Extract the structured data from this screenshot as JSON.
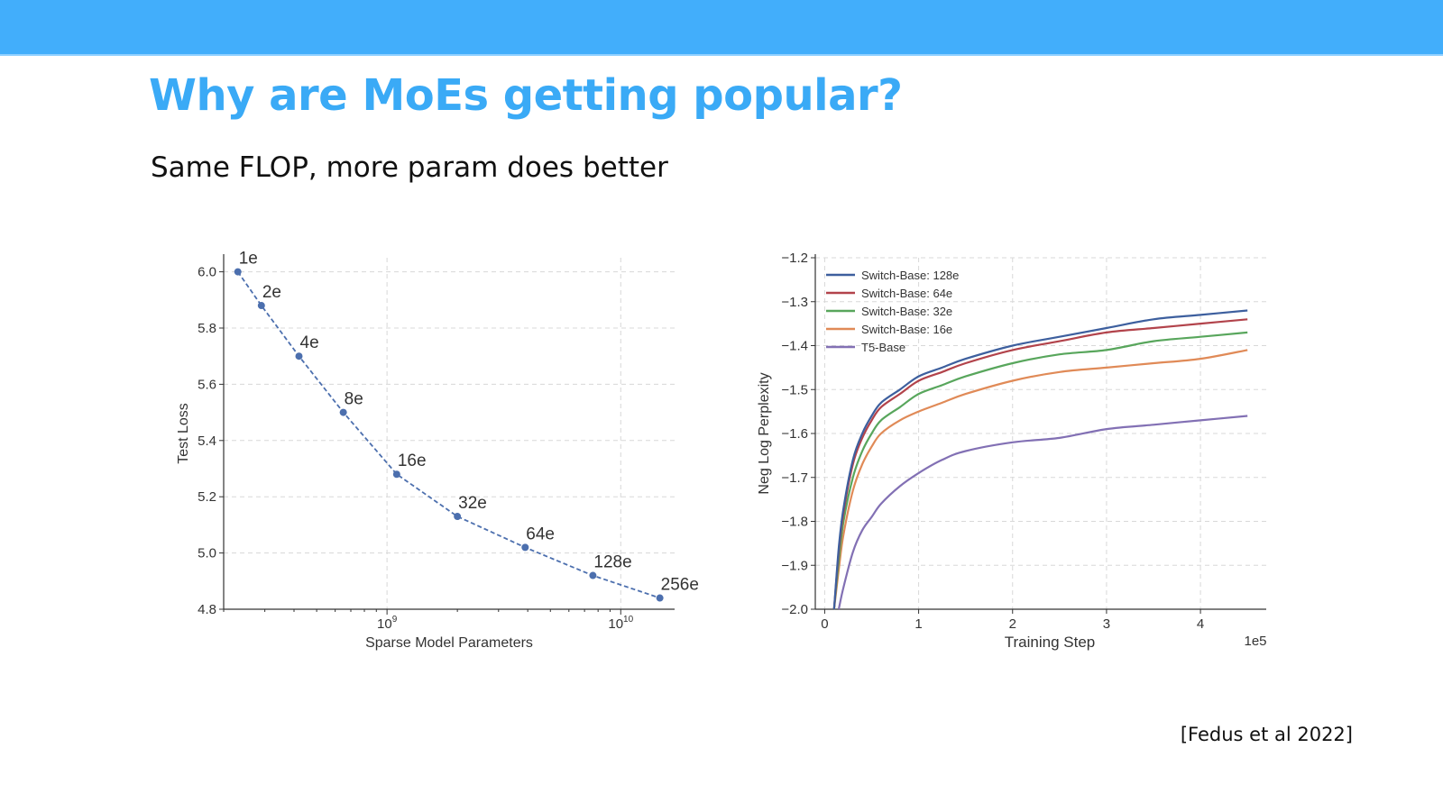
{
  "slide": {
    "title": "Why are MoEs getting popular?",
    "subtitle": "Same FLOP, more param does better",
    "citation": "[Fedus et al 2022]"
  },
  "colors": {
    "header_bar": "#42aefb",
    "title": "#3aaaf6",
    "left_series": "#4c6fae"
  },
  "chart_data": [
    {
      "type": "line",
      "xlabel": "Sparse Model Parameters",
      "ylabel": "Test Loss",
      "xscale": "log",
      "xlim": [
        200000000,
        17000000000
      ],
      "ylim": [
        4.8,
        6.05
      ],
      "grid": true,
      "yticks": [
        "6.0",
        "5.8",
        "5.6",
        "5.4",
        "5.2",
        "5.0",
        "4.8"
      ],
      "xticks": [
        {
          "value": 1000000000,
          "label": "10",
          "exp": "9"
        },
        {
          "value": 10000000000,
          "label": "10",
          "exp": "10"
        }
      ],
      "series": [
        {
          "line_style": "dashed",
          "points": [
            {
              "x": 230000000,
              "y": 6.0,
              "label": "1e"
            },
            {
              "x": 290000000,
              "y": 5.88,
              "label": "2e"
            },
            {
              "x": 420000000,
              "y": 5.7,
              "label": "4e"
            },
            {
              "x": 650000000,
              "y": 5.5,
              "label": "8e"
            },
            {
              "x": 1100000000,
              "y": 5.28,
              "label": "16e"
            },
            {
              "x": 2000000000,
              "y": 5.13,
              "label": "32e"
            },
            {
              "x": 3900000000,
              "y": 5.02,
              "label": "64e"
            },
            {
              "x": 7600000000,
              "y": 4.92,
              "label": "128e"
            },
            {
              "x": 14700000000,
              "y": 4.84,
              "label": "256e"
            }
          ]
        }
      ]
    },
    {
      "type": "line",
      "xlabel": "Training Step",
      "ylabel": "Neg Log Perplexity",
      "x_multiplier": "1e5",
      "xlim": [
        -0.1,
        4.7
      ],
      "ylim": [
        -2.0,
        -1.2
      ],
      "grid": true,
      "legend_position": "top-left",
      "xticks": [
        "0",
        "1",
        "2",
        "3",
        "4"
      ],
      "yticks": [
        "−1.2",
        "−1.3",
        "−1.4",
        "−1.5",
        "−1.6",
        "−1.7",
        "−1.8",
        "−1.9",
        "−2.0"
      ],
      "x": [
        0.1,
        0.15,
        0.2,
        0.3,
        0.4,
        0.5,
        0.6,
        0.8,
        1.0,
        1.25,
        1.5,
        2.0,
        2.5,
        3.0,
        3.5,
        4.0,
        4.5
      ],
      "series": [
        {
          "name": "Switch-Base: 128e",
          "color": "#3d5f9e",
          "values": [
            -2.0,
            -1.86,
            -1.77,
            -1.66,
            -1.6,
            -1.56,
            -1.53,
            -1.5,
            -1.47,
            -1.45,
            -1.43,
            -1.4,
            -1.38,
            -1.36,
            -1.34,
            -1.33,
            -1.32
          ]
        },
        {
          "name": "Switch-Base: 64e",
          "color": "#b2434b",
          "values": [
            -2.0,
            -1.87,
            -1.78,
            -1.67,
            -1.61,
            -1.57,
            -1.54,
            -1.51,
            -1.48,
            -1.46,
            -1.44,
            -1.41,
            -1.39,
            -1.37,
            -1.36,
            -1.35,
            -1.34
          ]
        },
        {
          "name": "Switch-Base: 32e",
          "color": "#58a65c",
          "values": [
            -2.0,
            -1.89,
            -1.8,
            -1.7,
            -1.64,
            -1.6,
            -1.57,
            -1.54,
            -1.51,
            -1.49,
            -1.47,
            -1.44,
            -1.42,
            -1.41,
            -1.39,
            -1.38,
            -1.37
          ]
        },
        {
          "name": "Switch-Base: 16e",
          "color": "#e08a57",
          "values": [
            -2.0,
            -1.91,
            -1.83,
            -1.73,
            -1.67,
            -1.63,
            -1.6,
            -1.57,
            -1.55,
            -1.53,
            -1.51,
            -1.48,
            -1.46,
            -1.45,
            -1.44,
            -1.43,
            -1.41
          ]
        },
        {
          "name": "T5-Base",
          "color": "#8270b4",
          "values": [
            null,
            -2.0,
            -1.95,
            -1.87,
            -1.82,
            -1.79,
            -1.76,
            -1.72,
            -1.69,
            -1.66,
            -1.64,
            -1.62,
            -1.61,
            -1.59,
            -1.58,
            -1.57,
            -1.56
          ]
        }
      ]
    }
  ]
}
